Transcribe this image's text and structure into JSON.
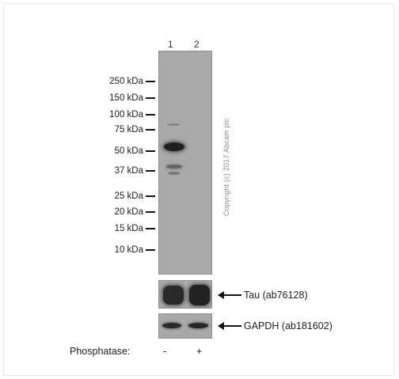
{
  "lanes": [
    "1",
    "2"
  ],
  "markers": [
    "250 kDa",
    "150 kDa",
    "100 kDa",
    "75 kDa",
    "50 kDa",
    "37 kDa",
    "25 kDa",
    "20 kDa",
    "15 kDa",
    "10 kDa"
  ],
  "copyright": "Copyright (c) 2017 Abcam plc",
  "strips": {
    "tau_label": "Tau (ab76128)",
    "gapdh_label": "GAPDH (ab181602)"
  },
  "treatment": {
    "label": "Phosphatase:",
    "lane1": "-",
    "lane2": "+"
  },
  "colors": {
    "blot_background": "#a9a9a9",
    "band_dark": "#2a2a2a"
  }
}
